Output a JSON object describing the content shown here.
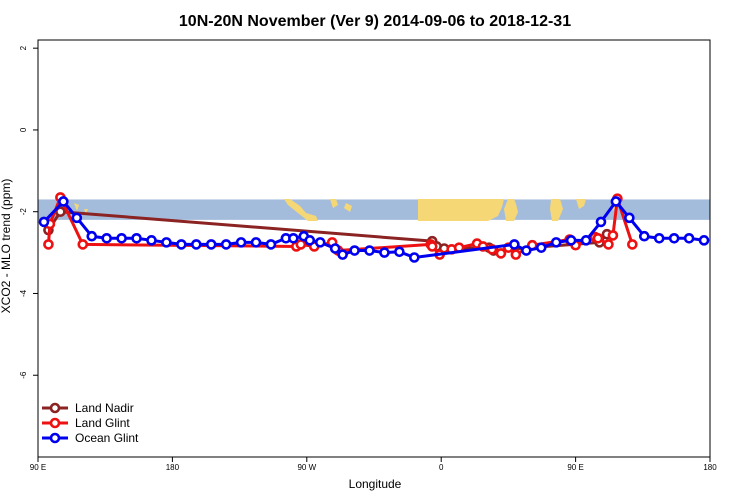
{
  "chart_data": {
    "type": "line",
    "title": "10N-20N November (Ver 9)   2014-09-06 to 2018-12-31",
    "xlabel": "Longitude",
    "ylabel": "XCO2 - MLO trend (ppm)",
    "xlim": [
      90,
      540
    ],
    "ylim": [
      -8,
      2.2
    ],
    "x_ticks": [
      {
        "value": 90,
        "label": "90 E"
      },
      {
        "value": 180,
        "label": "180"
      },
      {
        "value": 270,
        "label": "90 W"
      },
      {
        "value": 360,
        "label": "0"
      },
      {
        "value": 450,
        "label": "90 E"
      },
      {
        "value": 540,
        "label": "180"
      }
    ],
    "y_ticks": [
      {
        "value": 2,
        "label": "2"
      },
      {
        "value": 0,
        "label": "0"
      },
      {
        "value": -2,
        "label": "-2"
      },
      {
        "value": -4,
        "label": "-4"
      },
      {
        "value": -6,
        "label": "-6"
      }
    ],
    "map_band": {
      "ymin": -2.2,
      "ymax": -1.7,
      "ocean_color": "#a4bcdc",
      "land_color": "#f6d776"
    },
    "legend_position": "bottom-left",
    "series": [
      {
        "name": "Land Nadir",
        "color": "#8b2323",
        "x": [
          97,
          105,
          354,
          357,
          362,
          392,
          395,
          466,
          471
        ],
        "y": [
          -2.45,
          -2.0,
          -2.72,
          -2.85,
          -2.9,
          -2.88,
          -2.95,
          -2.75,
          -2.55
        ]
      },
      {
        "name": "Land Glint",
        "color": "#ee1111",
        "x": [
          97,
          98,
          105,
          120,
          263,
          266,
          275,
          287,
          291,
          353,
          354,
          359,
          367,
          372,
          384,
          388,
          394,
          400,
          405,
          410,
          421,
          446,
          450,
          463,
          465,
          472,
          475,
          478,
          488
        ],
        "y": [
          -2.8,
          -2.3,
          -1.65,
          -2.8,
          -2.85,
          -2.8,
          -2.85,
          -2.75,
          -2.95,
          -2.8,
          -2.85,
          -3.05,
          -2.92,
          -2.88,
          -2.78,
          -2.85,
          -2.92,
          -3.02,
          -2.88,
          -3.05,
          -2.82,
          -2.68,
          -2.82,
          -2.62,
          -2.65,
          -2.8,
          -2.58,
          -1.68,
          -2.8
        ]
      },
      {
        "name": "Ocean Glint",
        "color": "#0000ee",
        "x": [
          94,
          107,
          116,
          126,
          136,
          146,
          156,
          166,
          176,
          186,
          196,
          206,
          216,
          226,
          236,
          246,
          256,
          261,
          268,
          272,
          279,
          289,
          294,
          302,
          312,
          322,
          332,
          342,
          409,
          417,
          427,
          437,
          447,
          457,
          467,
          477,
          486,
          496,
          506,
          516,
          526,
          536
        ],
        "y": [
          -2.25,
          -1.75,
          -2.15,
          -2.6,
          -2.65,
          -2.65,
          -2.65,
          -2.7,
          -2.75,
          -2.8,
          -2.8,
          -2.8,
          -2.8,
          -2.75,
          -2.75,
          -2.8,
          -2.65,
          -2.65,
          -2.6,
          -2.7,
          -2.75,
          -2.9,
          -3.05,
          -2.95,
          -2.95,
          -3.0,
          -2.98,
          -3.12,
          -2.8,
          -2.95,
          -2.88,
          -2.75,
          -2.7,
          -2.7,
          -2.25,
          -1.75,
          -2.15,
          -2.6,
          -2.65,
          -2.65,
          -2.65,
          -2.7
        ]
      }
    ]
  }
}
